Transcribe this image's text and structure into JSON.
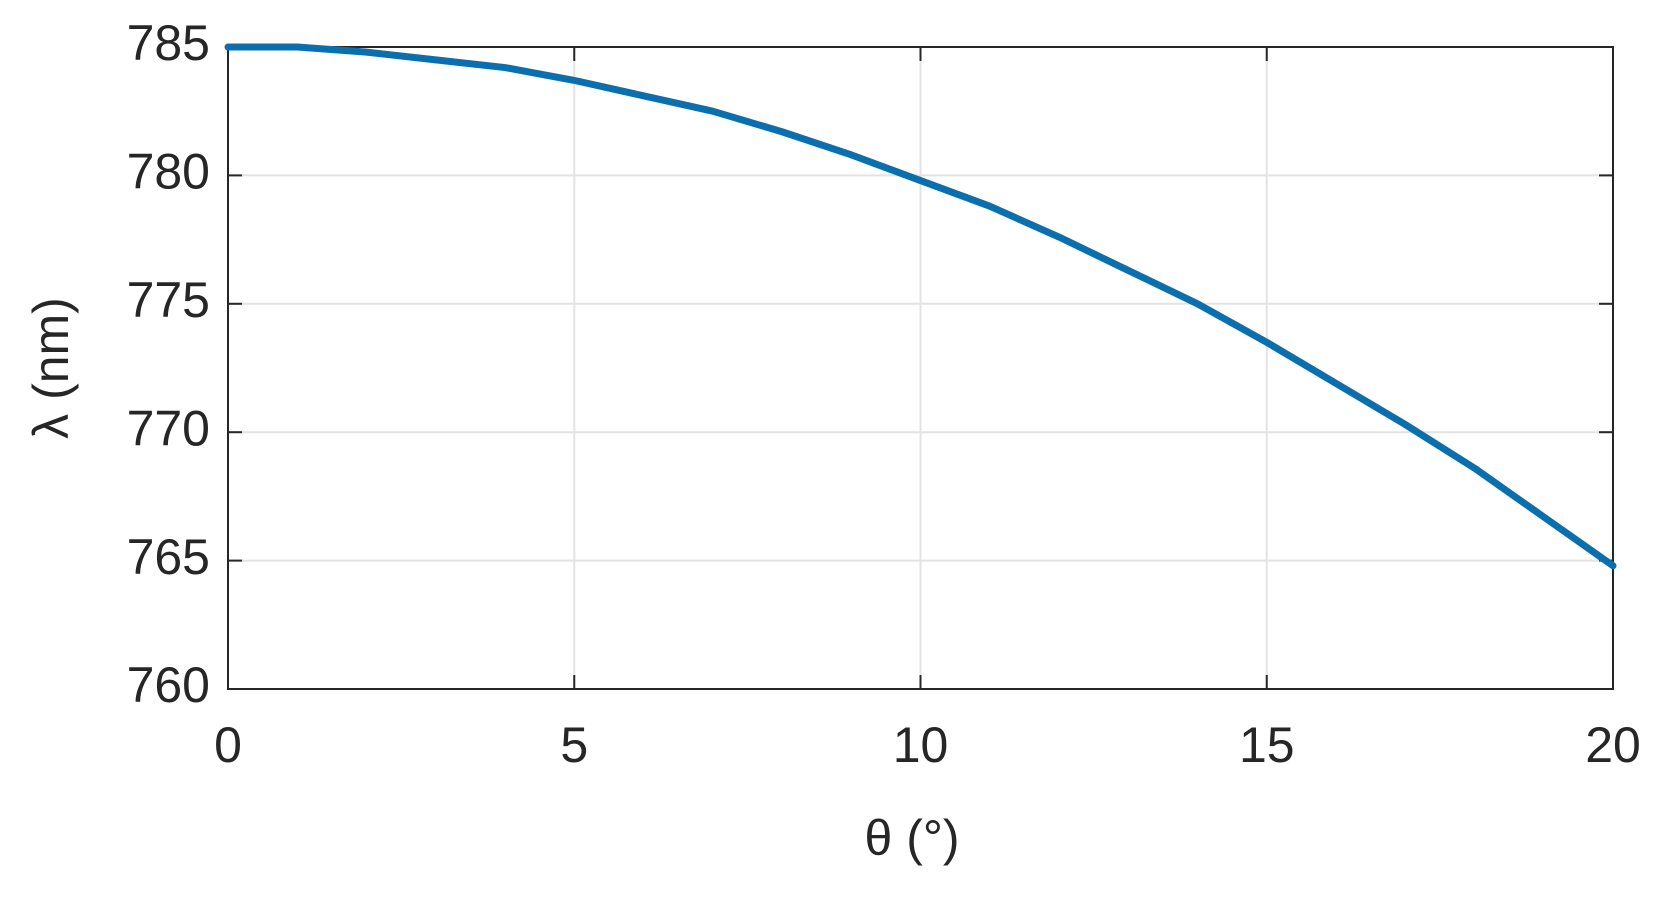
{
  "chart_data": {
    "type": "line",
    "x_label": "θ (°)",
    "y_label": "λ (nm)",
    "x": [
      0,
      1,
      2,
      3,
      4,
      5,
      6,
      7,
      8,
      9,
      10,
      11,
      12,
      13,
      14,
      15,
      16,
      17,
      18,
      19,
      20
    ],
    "series": [
      {
        "color": "#0b6fae",
        "values": [
          785.0,
          785.0,
          784.8,
          784.5,
          784.2,
          783.7,
          783.1,
          782.5,
          781.7,
          780.8,
          779.8,
          778.8,
          777.6,
          776.3,
          775.0,
          773.5,
          771.9,
          770.3,
          768.6,
          766.7,
          764.8
        ]
      }
    ],
    "xlim": [
      0,
      20
    ],
    "xticks": [
      0,
      5,
      10,
      15,
      20
    ],
    "ylim": [
      760,
      785
    ],
    "yticks": [
      760,
      765,
      770,
      775,
      780,
      785
    ],
    "grid": true
  }
}
